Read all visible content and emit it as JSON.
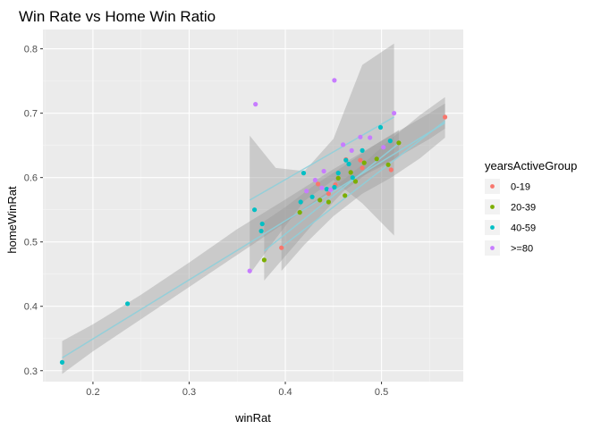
{
  "chart_data": {
    "type": "scatter",
    "title": "Win Rate vs Home Win Ratio",
    "xlabel": "winRat",
    "ylabel": "homeWinRat",
    "xlim": [
      0.148,
      0.585
    ],
    "ylim": [
      0.283,
      0.83
    ],
    "xticks": [
      {
        "value": 0.2,
        "label": "0.2"
      },
      {
        "value": 0.3,
        "label": "0.3"
      },
      {
        "value": 0.4,
        "label": "0.4"
      },
      {
        "value": 0.5,
        "label": "0.5"
      }
    ],
    "yticks": [
      {
        "value": 0.3,
        "label": "0.3"
      },
      {
        "value": 0.4,
        "label": "0.4"
      },
      {
        "value": 0.5,
        "label": "0.5"
      },
      {
        "value": 0.6,
        "label": "0.6"
      },
      {
        "value": 0.7,
        "label": "0.7"
      },
      {
        "value": 0.8,
        "label": "0.8"
      }
    ],
    "grid": true,
    "legend": {
      "title": "yearsActiveGroup",
      "position": "right"
    },
    "series": [
      {
        "name": "0-19",
        "color": "#F8766D",
        "points": [
          [
            0.566,
            0.694
          ],
          [
            0.51,
            0.612
          ],
          [
            0.478,
            0.627
          ],
          [
            0.396,
            0.491
          ],
          [
            0.48,
            0.615
          ],
          [
            0.463,
            0.628
          ],
          [
            0.434,
            0.59
          ],
          [
            0.452,
            0.589
          ],
          [
            0.445,
            0.575
          ]
        ],
        "smooth": {
          "x": [
            0.396,
            0.566
          ],
          "y": [
            0.492,
            0.688
          ]
        },
        "band": {
          "x": [
            0.396,
            0.42,
            0.45,
            0.48,
            0.51,
            0.54,
            0.566
          ],
          "lo": [
            0.455,
            0.496,
            0.54,
            0.575,
            0.6,
            0.63,
            0.662
          ],
          "hi": [
            0.53,
            0.553,
            0.584,
            0.62,
            0.66,
            0.697,
            0.725
          ]
        }
      },
      {
        "name": "20-39",
        "color": "#7CAE00",
        "points": [
          [
            0.518,
            0.654
          ],
          [
            0.507,
            0.62
          ],
          [
            0.473,
            0.594
          ],
          [
            0.415,
            0.546
          ],
          [
            0.378,
            0.472
          ],
          [
            0.436,
            0.565
          ],
          [
            0.445,
            0.562
          ],
          [
            0.462,
            0.572
          ],
          [
            0.468,
            0.608
          ],
          [
            0.482,
            0.623
          ],
          [
            0.455,
            0.599
          ],
          [
            0.495,
            0.629
          ]
        ],
        "smooth": {
          "x": [
            0.378,
            0.518
          ],
          "y": [
            0.486,
            0.653
          ]
        },
        "band": {
          "x": [
            0.378,
            0.4,
            0.43,
            0.46,
            0.49,
            0.518
          ],
          "lo": [
            0.44,
            0.478,
            0.53,
            0.578,
            0.612,
            0.632
          ],
          "hi": [
            0.532,
            0.554,
            0.588,
            0.617,
            0.648,
            0.674
          ]
        }
      },
      {
        "name": "40-59",
        "color": "#00BFC4",
        "points": [
          [
            0.168,
            0.313
          ],
          [
            0.236,
            0.404
          ],
          [
            0.368,
            0.55
          ],
          [
            0.376,
            0.528
          ],
          [
            0.375,
            0.517
          ],
          [
            0.416,
            0.562
          ],
          [
            0.428,
            0.57
          ],
          [
            0.419,
            0.607
          ],
          [
            0.443,
            0.582
          ],
          [
            0.451,
            0.585
          ],
          [
            0.463,
            0.627
          ],
          [
            0.466,
            0.621
          ],
          [
            0.48,
            0.642
          ],
          [
            0.499,
            0.678
          ],
          [
            0.509,
            0.657
          ],
          [
            0.47,
            0.6
          ],
          [
            0.455,
            0.607
          ]
        ],
        "smooth": {
          "x": [
            0.168,
            0.566
          ],
          "y": [
            0.32,
            0.685
          ]
        },
        "band": {
          "x": [
            0.168,
            0.2,
            0.25,
            0.3,
            0.35,
            0.4,
            0.45,
            0.5,
            0.55,
            0.566
          ],
          "lo": [
            0.295,
            0.33,
            0.38,
            0.43,
            0.48,
            0.53,
            0.58,
            0.617,
            0.66,
            0.676
          ],
          "hi": [
            0.346,
            0.372,
            0.418,
            0.468,
            0.52,
            0.566,
            0.613,
            0.657,
            0.7,
            0.715
          ]
        }
      },
      {
        "name": ">=80",
        "color": "#C77CFF",
        "points": [
          [
            0.363,
            0.455
          ],
          [
            0.369,
            0.714
          ],
          [
            0.451,
            0.751
          ],
          [
            0.513,
            0.7
          ],
          [
            0.488,
            0.662
          ],
          [
            0.478,
            0.663
          ],
          [
            0.46,
            0.651
          ],
          [
            0.44,
            0.61
          ],
          [
            0.469,
            0.642
          ],
          [
            0.431,
            0.596
          ],
          [
            0.422,
            0.579
          ],
          [
            0.438,
            0.584
          ],
          [
            0.447,
            0.581
          ],
          [
            0.502,
            0.647
          ]
        ],
        "smooth": {
          "x": [
            0.363,
            0.513
          ],
          "y": [
            0.565,
            0.694
          ]
        },
        "band": {
          "x": [
            0.363,
            0.39,
            0.42,
            0.45,
            0.48,
            0.513
          ],
          "lo": [
            0.45,
            0.505,
            0.564,
            0.596,
            0.56,
            0.51
          ],
          "hi": [
            0.665,
            0.615,
            0.61,
            0.66,
            0.775,
            0.808
          ]
        }
      }
    ]
  }
}
